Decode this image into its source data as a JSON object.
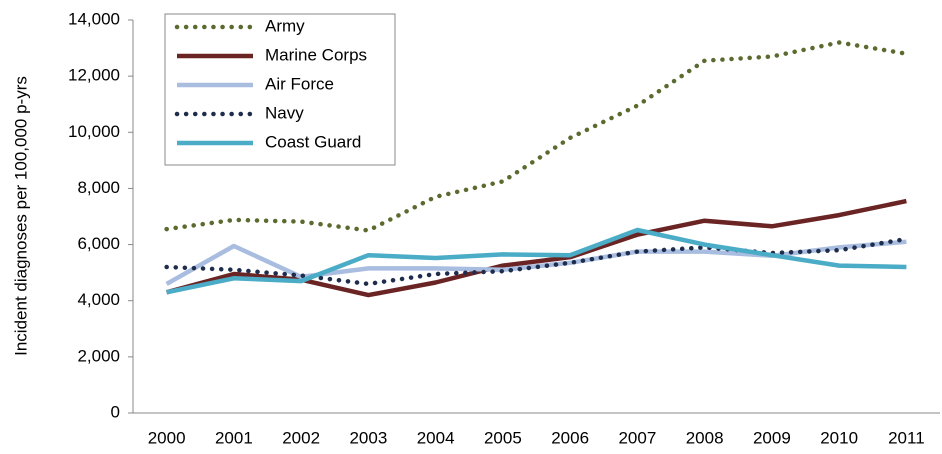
{
  "chart_data": {
    "type": "line",
    "y_label": "Incident diagnoses per 100,000 p-yrs",
    "categories": [
      "2000",
      "2001",
      "2002",
      "2003",
      "2004",
      "2005",
      "2006",
      "2007",
      "2008",
      "2009",
      "2010",
      "2011"
    ],
    "series": [
      {
        "name": "Army",
        "color": "#5b6b2f",
        "style": "dotted",
        "values": [
          6550,
          6880,
          6820,
          6500,
          7700,
          8250,
          9800,
          10950,
          12550,
          12700,
          13200,
          12800
        ]
      },
      {
        "name": "Marine Corps",
        "color": "#6b2424",
        "style": "solid",
        "values": [
          4300,
          4950,
          4750,
          4200,
          4650,
          5250,
          5550,
          6350,
          6850,
          6650,
          7050,
          7550
        ]
      },
      {
        "name": "Air Force",
        "color": "#a9bde0",
        "style": "solid",
        "values": [
          4600,
          5950,
          4850,
          5150,
          5150,
          5100,
          5350,
          5750,
          5750,
          5600,
          5900,
          6100
        ]
      },
      {
        "name": "Navy",
        "color": "#1f2d4d",
        "style": "dotted",
        "values": [
          5200,
          5100,
          4900,
          4600,
          4950,
          5050,
          5350,
          5750,
          5900,
          5700,
          5800,
          6200
        ]
      },
      {
        "name": "Coast Guard",
        "color": "#4aacc6",
        "style": "solid",
        "values": [
          4300,
          4800,
          4700,
          5620,
          5520,
          5650,
          5620,
          6520,
          6000,
          5620,
          5250,
          5200
        ]
      }
    ],
    "ylim": [
      0,
      14000
    ],
    "yticks": [
      0,
      {
        "value": 2000,
        "label": "2,000"
      },
      {
        "value": 4000,
        "label": "4,000"
      },
      {
        "value": 6000,
        "label": "6,000"
      },
      {
        "value": 8000,
        "label": "8,000"
      },
      {
        "value": 10000,
        "label": "10,000"
      },
      {
        "value": 12000,
        "label": "12,000"
      },
      {
        "value": 14000,
        "label": "14,000"
      }
    ],
    "grid": false,
    "legend": "top-left"
  }
}
